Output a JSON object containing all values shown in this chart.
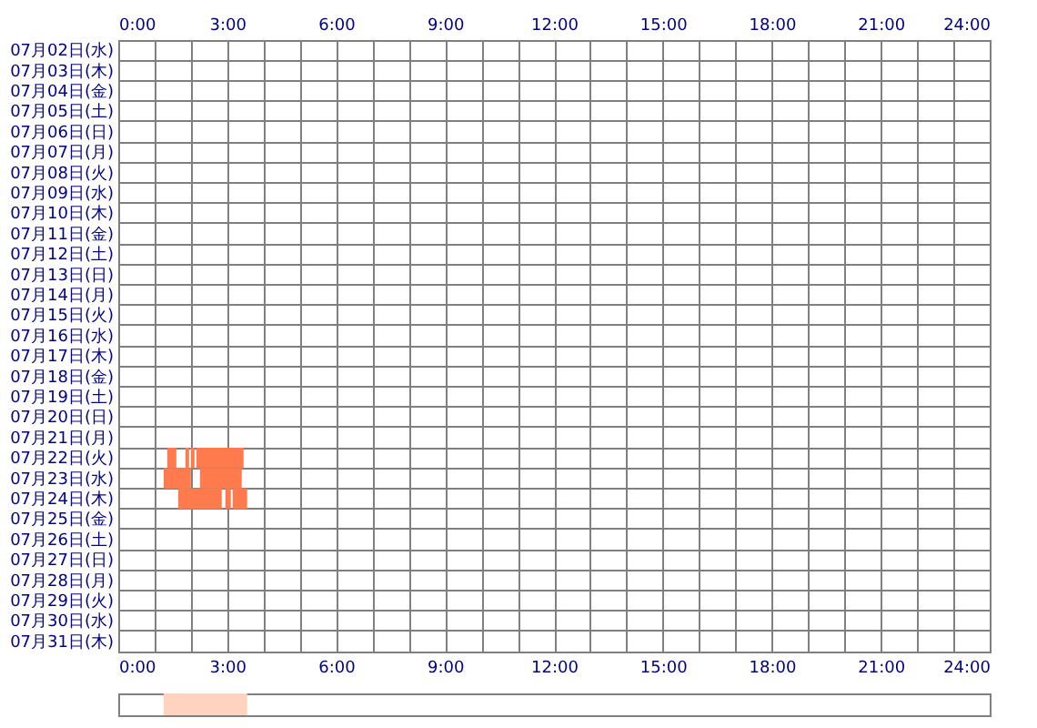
{
  "chart_data": [
    {
      "type": "bar",
      "orientation": "horizontal",
      "categories": [
        "07月02日(水)",
        "07月03日(木)",
        "07月04日(金)",
        "07月05日(土)",
        "07月06日(日)",
        "07月07日(月)",
        "07月08日(火)",
        "07月09日(水)",
        "07月10日(木)",
        "07月11日(金)",
        "07月12日(土)",
        "07月13日(日)",
        "07月14日(月)",
        "07月15日(火)",
        "07月16日(水)",
        "07月17日(木)",
        "07月18日(金)",
        "07月19日(土)",
        "07月20日(日)",
        "07月21日(月)",
        "07月22日(火)",
        "07月23日(水)",
        "07月24日(木)",
        "07月25日(金)",
        "07月26日(土)",
        "07月27日(日)",
        "07月28日(月)",
        "07月29日(火)",
        "07月30日(水)",
        "07月31日(木)"
      ],
      "series": [
        {
          "color": "#ff7b4d",
          "base": [
            null,
            null,
            null,
            null,
            null,
            null,
            null,
            null,
            null,
            null,
            null,
            null,
            null,
            null,
            null,
            null,
            null,
            null,
            null,
            null,
            1.35,
            1.25,
            1.65,
            null,
            null,
            null,
            null,
            null,
            null,
            null
          ],
          "values": [
            null,
            null,
            null,
            null,
            null,
            null,
            null,
            null,
            null,
            null,
            null,
            null,
            null,
            null,
            null,
            null,
            null,
            null,
            null,
            null,
            0.25,
            0.75,
            1.2,
            null,
            null,
            null,
            null,
            null,
            null,
            null
          ]
        },
        {
          "color": "#ff7b4d",
          "base": [
            null,
            null,
            null,
            null,
            null,
            null,
            null,
            null,
            null,
            null,
            null,
            null,
            null,
            null,
            null,
            null,
            null,
            null,
            null,
            null,
            1.85,
            2.25,
            2.95,
            null,
            null,
            null,
            null,
            null,
            null,
            null
          ],
          "values": [
            null,
            null,
            null,
            null,
            null,
            null,
            null,
            null,
            null,
            null,
            null,
            null,
            null,
            null,
            null,
            null,
            null,
            null,
            null,
            null,
            0.1,
            1.15,
            0.15,
            null,
            null,
            null,
            null,
            null,
            null,
            null
          ]
        },
        {
          "color": "#ff7b4d",
          "base": [
            null,
            null,
            null,
            null,
            null,
            null,
            null,
            null,
            null,
            null,
            null,
            null,
            null,
            null,
            null,
            null,
            null,
            null,
            null,
            null,
            2.0,
            null,
            3.15,
            null,
            null,
            null,
            null,
            null,
            null,
            null
          ],
          "values": [
            null,
            null,
            null,
            null,
            null,
            null,
            null,
            null,
            null,
            null,
            null,
            null,
            null,
            null,
            null,
            null,
            null,
            null,
            null,
            null,
            0.1,
            null,
            0.4,
            null,
            null,
            null,
            null,
            null,
            null,
            null
          ]
        },
        {
          "color": "#ff7b4d",
          "base": [
            null,
            null,
            null,
            null,
            null,
            null,
            null,
            null,
            null,
            null,
            null,
            null,
            null,
            null,
            null,
            null,
            null,
            null,
            null,
            null,
            2.15,
            null,
            null,
            null,
            null,
            null,
            null,
            null,
            null,
            null
          ],
          "values": [
            null,
            null,
            null,
            null,
            null,
            null,
            null,
            null,
            null,
            null,
            null,
            null,
            null,
            null,
            null,
            null,
            null,
            null,
            null,
            null,
            1.3,
            null,
            null,
            null,
            null,
            null,
            null,
            null,
            null,
            null
          ]
        }
      ],
      "xlim": [
        0,
        24
      ],
      "xticks": [
        {
          "value": 0,
          "label": "0:00"
        },
        {
          "value": 1,
          "label": null
        },
        {
          "value": 2,
          "label": null
        },
        {
          "value": 3,
          "label": "3:00"
        },
        {
          "value": 4,
          "label": null
        },
        {
          "value": 5,
          "label": null
        },
        {
          "value": 6,
          "label": "6:00"
        },
        {
          "value": 7,
          "label": null
        },
        {
          "value": 8,
          "label": null
        },
        {
          "value": 9,
          "label": "9:00"
        },
        {
          "value": 10,
          "label": null
        },
        {
          "value": 11,
          "label": null
        },
        {
          "value": 12,
          "label": "12:00"
        },
        {
          "value": 13,
          "label": null
        },
        {
          "value": 14,
          "label": null
        },
        {
          "value": 15,
          "label": "15:00"
        },
        {
          "value": 16,
          "label": null
        },
        {
          "value": 17,
          "label": null
        },
        {
          "value": 18,
          "label": "18:00"
        },
        {
          "value": 19,
          "label": null
        },
        {
          "value": 20,
          "label": null
        },
        {
          "value": 21,
          "label": "21:00"
        },
        {
          "value": 22,
          "label": null
        },
        {
          "value": 23,
          "label": null
        },
        {
          "value": 24,
          "label": "24:00"
        }
      ],
      "x2lim": [
        0,
        24
      ],
      "x2ticks": [
        {
          "value": 0,
          "label": "0:00"
        },
        {
          "value": 1,
          "label": null
        },
        {
          "value": 2,
          "label": null
        },
        {
          "value": 3,
          "label": "3:00"
        },
        {
          "value": 4,
          "label": null
        },
        {
          "value": 5,
          "label": null
        },
        {
          "value": 6,
          "label": "6:00"
        },
        {
          "value": 7,
          "label": null
        },
        {
          "value": 8,
          "label": null
        },
        {
          "value": 9,
          "label": "9:00"
        },
        {
          "value": 10,
          "label": null
        },
        {
          "value": 11,
          "label": null
        },
        {
          "value": 12,
          "label": "12:00"
        },
        {
          "value": 13,
          "label": null
        },
        {
          "value": 14,
          "label": null
        },
        {
          "value": 15,
          "label": "15:00"
        },
        {
          "value": 16,
          "label": null
        },
        {
          "value": 17,
          "label": null
        },
        {
          "value": 18,
          "label": "18:00"
        },
        {
          "value": 19,
          "label": null
        },
        {
          "value": 20,
          "label": null
        },
        {
          "value": 21,
          "label": "21:00"
        },
        {
          "value": 22,
          "label": null
        },
        {
          "value": 23,
          "label": null
        },
        {
          "value": 24,
          "label": "24:00"
        }
      ],
      "grid": true
    },
    {
      "type": "bar",
      "orientation": "horizontal",
      "categories": [
        null
      ],
      "series": [
        {
          "color": "#ffd3bf",
          "base": [
            1.25
          ],
          "values": [
            2.3
          ]
        }
      ],
      "xlim": [
        0,
        24
      ]
    }
  ]
}
